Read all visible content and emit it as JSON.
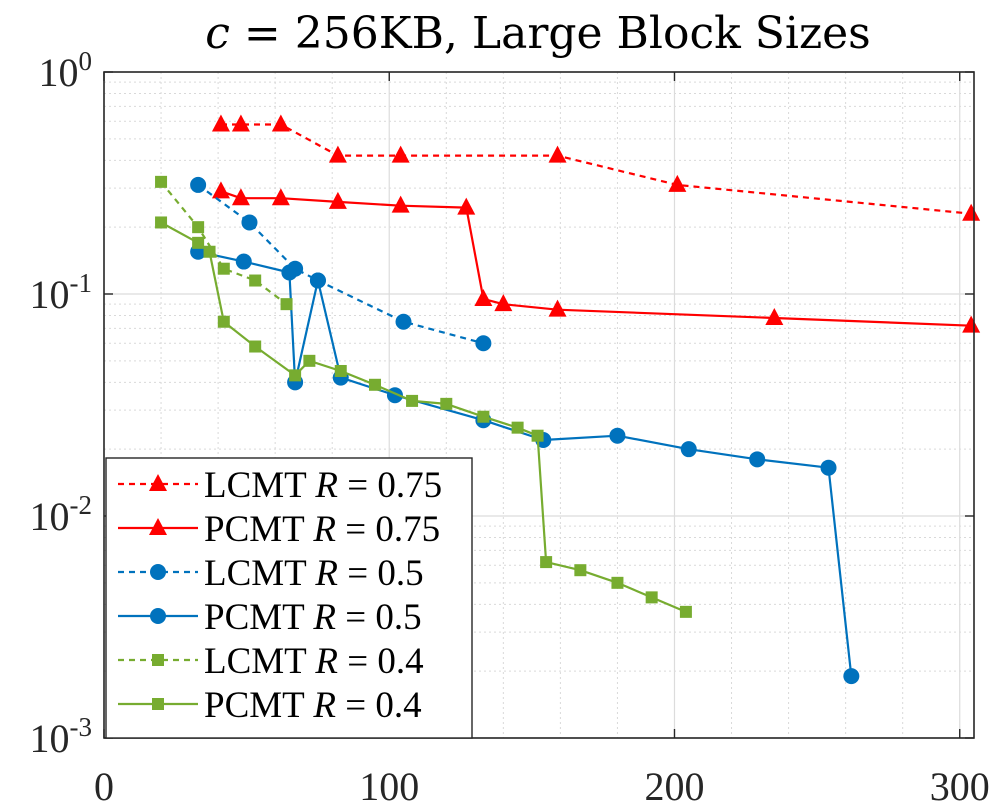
{
  "chart_data": {
    "type": "line",
    "title": "c = 256KB, Large Block Sizes",
    "title_parts": {
      "var": "c",
      "rest": " = 256KB, Large Block Sizes"
    },
    "xlabel": "",
    "ylabel": "",
    "xscale": "linear",
    "yscale": "log",
    "xlim": [
      0,
      305
    ],
    "ylim": [
      0.001,
      1
    ],
    "xticks": [
      0,
      100,
      200,
      300
    ],
    "xtick_labels": [
      "0",
      "100",
      "200",
      "300"
    ],
    "yticks": [
      0.001,
      0.01,
      0.1,
      1
    ],
    "ytick_labels": [
      {
        "base": "10",
        "exp": "-3"
      },
      {
        "base": "10",
        "exp": "-2"
      },
      {
        "base": "10",
        "exp": "-1"
      },
      {
        "base": "10",
        "exp": "0"
      }
    ],
    "grid": true,
    "legend_position": "bottom-left",
    "series": [
      {
        "name": "LCMT R = 0.75",
        "scheme": "LCMT",
        "rate": "R = 0.75",
        "color": "#ff0000",
        "dash": "dashed",
        "marker": "triangle",
        "x": [
          41,
          48,
          62,
          82,
          104,
          159,
          201,
          304
        ],
        "y": [
          0.58,
          0.58,
          0.58,
          0.42,
          0.42,
          0.42,
          0.31,
          0.23
        ]
      },
      {
        "name": "PCMT R = 0.75",
        "scheme": "PCMT",
        "rate": "R = 0.75",
        "color": "#ff0000",
        "dash": "solid",
        "marker": "triangle",
        "x": [
          41,
          48,
          62,
          82,
          104,
          127,
          133,
          140,
          159,
          235,
          304
        ],
        "y": [
          0.29,
          0.27,
          0.27,
          0.26,
          0.25,
          0.245,
          0.095,
          0.09,
          0.085,
          0.078,
          0.072
        ]
      },
      {
        "name": "LCMT R = 0.5",
        "scheme": "LCMT",
        "rate": "R = 0.5",
        "color": "#0072bd",
        "dash": "dashed",
        "marker": "circle",
        "x": [
          33,
          51,
          67,
          75,
          105,
          133
        ],
        "y": [
          0.31,
          0.21,
          0.13,
          0.115,
          0.075,
          0.06
        ]
      },
      {
        "name": "PCMT R = 0.5",
        "scheme": "PCMT",
        "rate": "R = 0.5",
        "color": "#0072bd",
        "dash": "solid",
        "marker": "circle",
        "x": [
          33,
          49,
          65,
          67,
          75,
          83,
          102,
          133,
          154,
          180,
          205,
          229,
          254,
          262
        ],
        "y": [
          0.155,
          0.14,
          0.125,
          0.04,
          0.115,
          0.042,
          0.035,
          0.027,
          0.022,
          0.023,
          0.02,
          0.018,
          0.0165,
          0.0019
        ]
      },
      {
        "name": "LCMT R = 0.4",
        "scheme": "LCMT",
        "rate": "R = 0.4",
        "color": "#77ac30",
        "dash": "dashed",
        "marker": "square",
        "x": [
          20,
          33,
          42,
          53,
          64
        ],
        "y": [
          0.32,
          0.2,
          0.13,
          0.115,
          0.09
        ]
      },
      {
        "name": "PCMT R = 0.4",
        "scheme": "PCMT",
        "rate": "R = 0.4",
        "color": "#77ac30",
        "dash": "solid",
        "marker": "square",
        "x": [
          20,
          33,
          37,
          42,
          53,
          67,
          72,
          83,
          95,
          108,
          120,
          133,
          145,
          152,
          155,
          167,
          180,
          192,
          204
        ],
        "y": [
          0.21,
          0.17,
          0.155,
          0.075,
          0.058,
          0.043,
          0.05,
          0.045,
          0.039,
          0.033,
          0.032,
          0.028,
          0.025,
          0.023,
          0.0062,
          0.0057,
          0.005,
          0.0043,
          0.0037
        ]
      }
    ]
  }
}
